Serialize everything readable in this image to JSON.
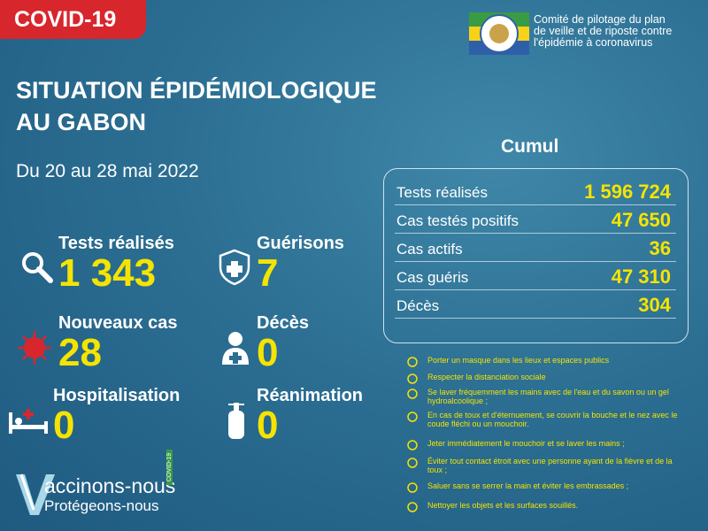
{
  "banner": "COVID-19",
  "committee": [
    "Comité de pilotage du plan",
    "de veille et de riposte contre",
    "l'épidémie à coronavirus"
  ],
  "title": [
    "SITUATION ÉPIDÉMIOLOGIQUE",
    "AU GABON"
  ],
  "period": "Du 20 au 28 mai  2022",
  "stats": [
    {
      "label": "Tests réalisés",
      "value": "1 343"
    },
    {
      "label": "Guérisons",
      "value": "7"
    },
    {
      "label": "Nouveaux cas",
      "value": "28"
    },
    {
      "label": "Décès",
      "value": "0"
    },
    {
      "label": "Hospitalisation",
      "value": "0"
    },
    {
      "label": "Réanimation",
      "value": "0"
    }
  ],
  "cumul": {
    "title": "Cumul",
    "rows": [
      {
        "label": "Tests réalisés",
        "value": "1 596 724"
      },
      {
        "label": "Cas testés positifs",
        "value": "47 650"
      },
      {
        "label": "Cas actifs",
        "value": "36"
      },
      {
        "label": "Cas guéris",
        "value": "47 310"
      },
      {
        "label": "Décès",
        "value": "304"
      }
    ]
  },
  "measures": [
    "Porter un masque dans les lieux et espaces publics",
    "Respecter la distanciation sociale",
    "Se laver fréquemment les mains avec de l'eau et du savon ou un gel hydroalcoolique ;",
    "En cas de toux et d'éternuement, se couvrir la bouche et le nez avec le coude fléchi ou un mouchoir.",
    "Jeter immédiatement le mouchoir et se laver les mains ;",
    "Éviter tout contact étroit avec une personne ayant de la fièvre et de la toux ;",
    "Saluer sans se serrer la main et éviter les embrassades ;",
    "Nettoyer les objets et les surfaces souillés."
  ],
  "campaign": {
    "line1": "accinons-nous",
    "line2": "Protégeons-nous",
    "tag": "COVID-19"
  }
}
